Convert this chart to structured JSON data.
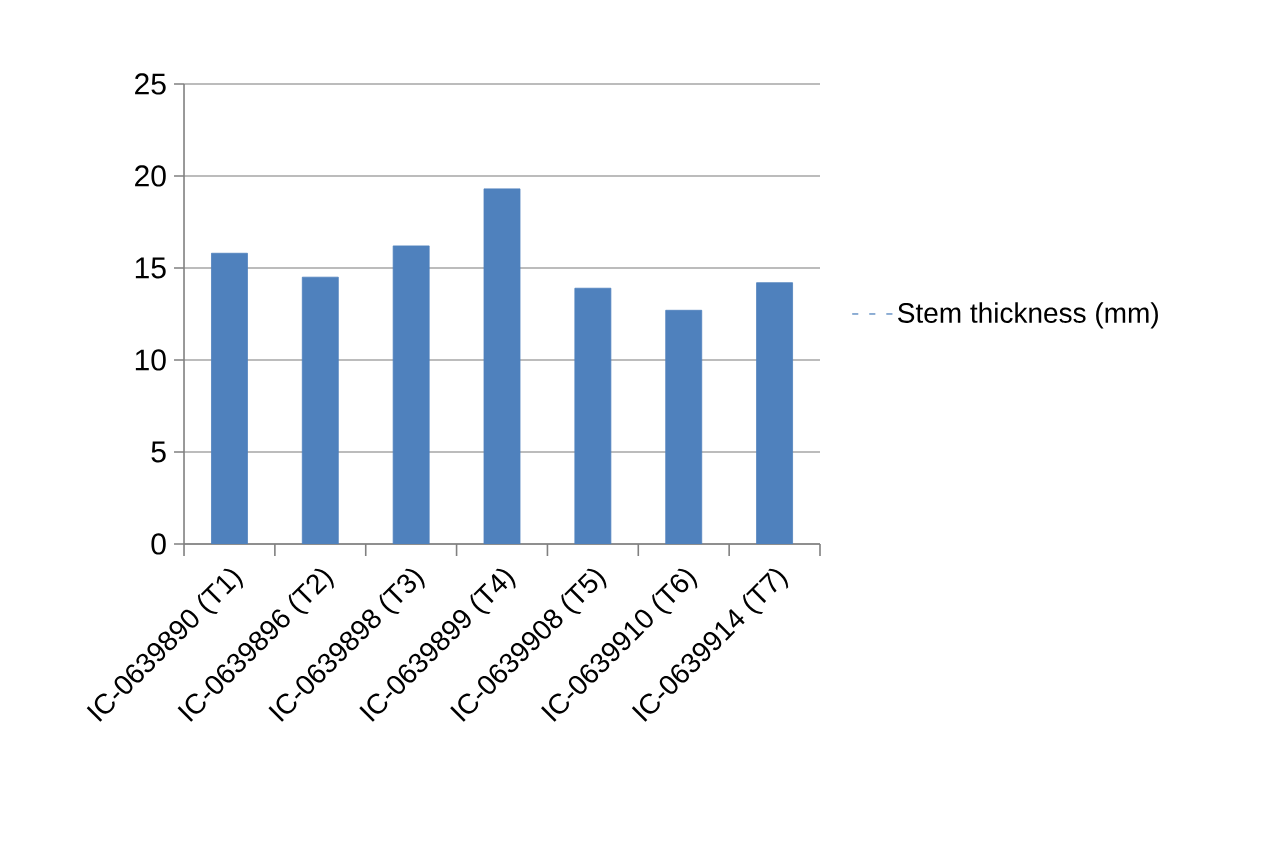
{
  "chart_data": {
    "type": "bar",
    "categories": [
      "IC-0639890 (T1)",
      "IC-0639896 (T2)",
      "IC-0639898 (T3)",
      "IC-0639899 (T4)",
      "IC-0639908 (T5)",
      "IC-0639910 (T6)",
      "IC-0639914 (T7)"
    ],
    "series": [
      {
        "name": "Stem thickness (mm)",
        "color": "#4f81bd",
        "values": [
          15.8,
          14.5,
          16.2,
          19.3,
          13.9,
          12.7,
          14.2
        ]
      }
    ],
    "ylim": [
      0,
      25
    ],
    "yticks": [
      0,
      5,
      10,
      15,
      20,
      25
    ],
    "grid": "y",
    "legend": "right"
  }
}
